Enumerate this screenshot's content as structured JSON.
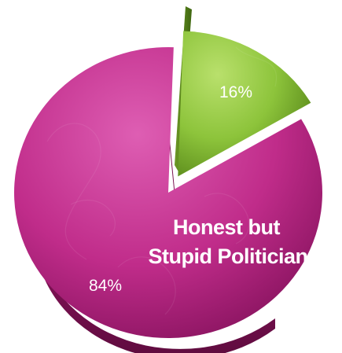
{
  "chart_data": {
    "type": "pie",
    "slices": [
      {
        "label": "16%",
        "value": 16,
        "color": "#8dc43b",
        "exploded": true
      },
      {
        "label": "84%",
        "value": 84,
        "color": "#c02c8a",
        "exploded": false
      }
    ],
    "annotation": [
      "Honest but",
      "Stupid Politician"
    ]
  }
}
